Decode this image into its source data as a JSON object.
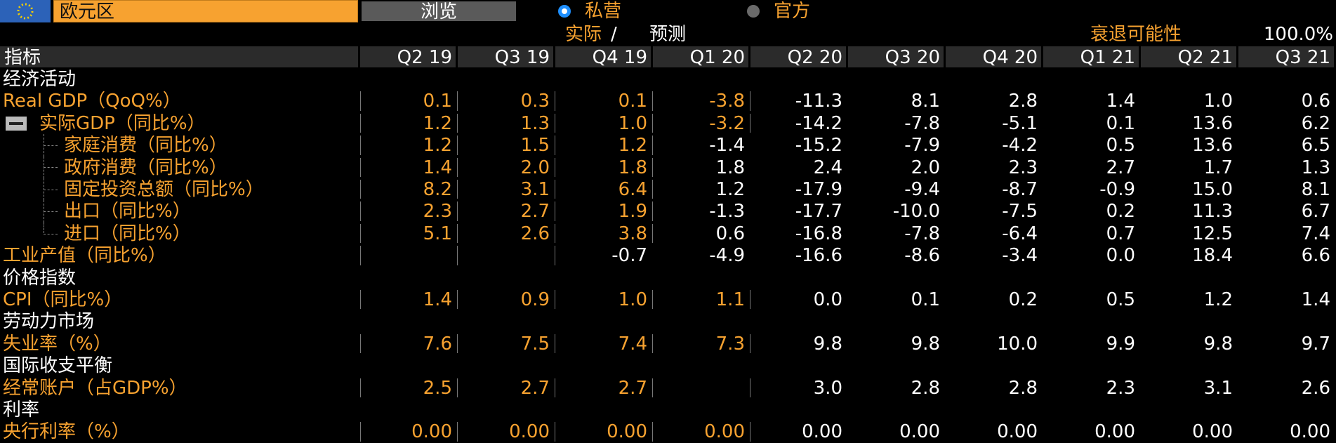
{
  "header": {
    "region": "欧元区",
    "browse": "浏览",
    "options": [
      {
        "label": "私营",
        "selected": true
      },
      {
        "label": "官方",
        "selected": false
      }
    ]
  },
  "subheader": {
    "actual": "实际",
    "separator": "/",
    "forecast": "预测",
    "recession_label": "衰退可能性",
    "recession_value": "100.0%"
  },
  "table": {
    "columns": [
      "指标",
      "Q2 19",
      "Q3 19",
      "Q4 19",
      "Q1 20",
      "Q2 20",
      "Q3 20",
      "Q4 20",
      "Q1 21",
      "Q2 21",
      "Q3 21"
    ],
    "sections": [
      {
        "title": "经济活动",
        "rows": [
          {
            "label": "Real GDP（QoQ%）",
            "actual_columns": 4,
            "values": [
              "0.1",
              "0.3",
              "0.1",
              "-3.8",
              "-11.3",
              "8.1",
              "2.8",
              "1.4",
              "1.0",
              "0.6"
            ]
          },
          {
            "label": "实际GDP（同比%）",
            "actual_columns": 4,
            "values": [
              "1.2",
              "1.3",
              "1.0",
              "-3.2",
              "-14.2",
              "-7.8",
              "-5.1",
              "0.1",
              "13.6",
              "6.2"
            ],
            "children": [
              {
                "label": "家庭消费（同比%）",
                "actual_columns": 3,
                "values": [
                  "1.2",
                  "1.5",
                  "1.2",
                  "-1.4",
                  "-15.2",
                  "-7.9",
                  "-4.2",
                  "0.5",
                  "13.6",
                  "6.5"
                ]
              },
              {
                "label": "政府消费（同比%）",
                "actual_columns": 3,
                "values": [
                  "1.4",
                  "2.0",
                  "1.8",
                  "1.8",
                  "2.4",
                  "2.0",
                  "2.3",
                  "2.7",
                  "1.7",
                  "1.3"
                ]
              },
              {
                "label": "固定投资总额（同比%）",
                "actual_columns": 3,
                "values": [
                  "8.2",
                  "3.1",
                  "6.4",
                  "1.2",
                  "-17.9",
                  "-9.4",
                  "-8.7",
                  "-0.9",
                  "15.0",
                  "8.1"
                ]
              },
              {
                "label": "出口（同比%）",
                "actual_columns": 3,
                "values": [
                  "2.3",
                  "2.7",
                  "1.9",
                  "-1.3",
                  "-17.7",
                  "-10.0",
                  "-7.5",
                  "0.2",
                  "11.3",
                  "6.7"
                ]
              },
              {
                "label": "进口（同比%）",
                "actual_columns": 3,
                "values": [
                  "5.1",
                  "2.6",
                  "3.8",
                  "0.6",
                  "-16.8",
                  "-7.8",
                  "-6.4",
                  "0.7",
                  "12.5",
                  "7.4"
                ]
              }
            ]
          },
          {
            "label": "工业产值（同比%）",
            "actual_columns": 0,
            "values": [
              null,
              null,
              "-0.7",
              "-4.9",
              "-16.6",
              "-8.6",
              "-3.4",
              "0.0",
              "18.4",
              "6.6"
            ]
          }
        ]
      },
      {
        "title": "价格指数",
        "rows": [
          {
            "label": "CPI（同比%）",
            "actual_columns": 4,
            "values": [
              "1.4",
              "0.9",
              "1.0",
              "1.1",
              "0.0",
              "0.1",
              "0.2",
              "0.5",
              "1.2",
              "1.4"
            ]
          }
        ]
      },
      {
        "title": "劳动力市场",
        "rows": [
          {
            "label": "失业率（%）",
            "actual_columns": 4,
            "values": [
              "7.6",
              "7.5",
              "7.4",
              "7.3",
              "9.8",
              "9.8",
              "10.0",
              "9.9",
              "9.8",
              "9.7"
            ]
          }
        ]
      },
      {
        "title": "国际收支平衡",
        "rows": [
          {
            "label": "经常账户（占GDP%）",
            "actual_columns": 3,
            "values": [
              "2.5",
              "2.7",
              "2.7",
              null,
              "3.0",
              "2.8",
              "2.8",
              "2.3",
              "3.1",
              "2.6"
            ]
          }
        ]
      },
      {
        "title": "利率",
        "rows": [
          {
            "label": "央行利率（%）",
            "actual_columns": 4,
            "values": [
              "0.00",
              "0.00",
              "0.00",
              "0.00",
              "0.00",
              "0.00",
              "0.00",
              "0.00",
              "0.00",
              "0.00"
            ]
          }
        ]
      }
    ]
  }
}
